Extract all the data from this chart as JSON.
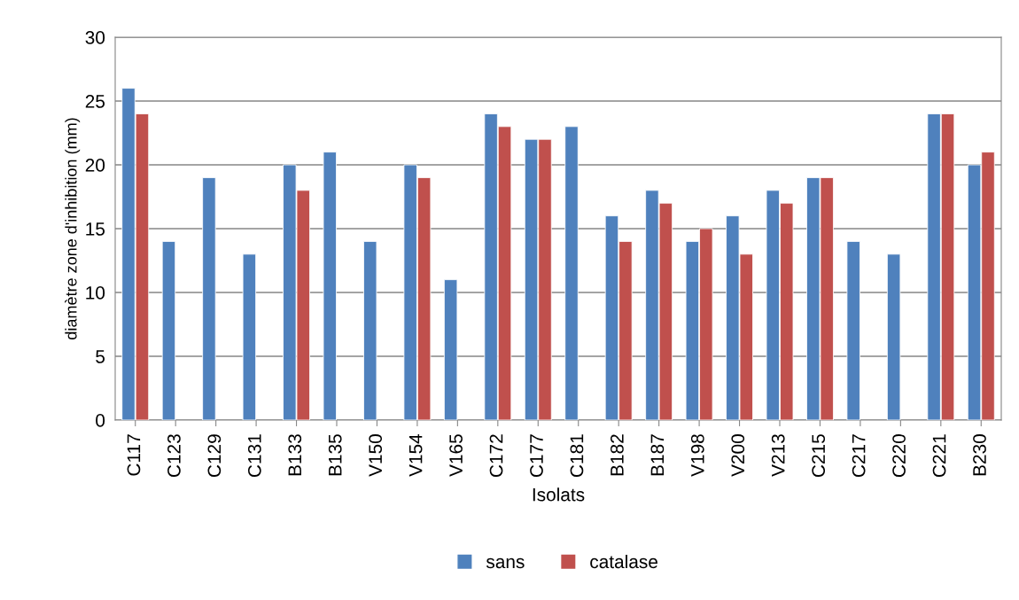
{
  "chart_data": {
    "type": "bar",
    "xlabel": "Isolats",
    "ylabel": "diamètre zone d'inhibition (mm)",
    "categories": [
      "C117",
      "C123",
      "C129",
      "C131",
      "B133",
      "B135",
      "V150",
      "V154",
      "V165",
      "C172",
      "C177",
      "C181",
      "B182",
      "B187",
      "V198",
      "V200",
      "V213",
      "C215",
      "C217",
      "C220",
      "C221",
      "B230"
    ],
    "series": [
      {
        "name": "sans",
        "color": "#4f81bd",
        "values": [
          26,
          14,
          19,
          13,
          20,
          21,
          14,
          20,
          11,
          24,
          22,
          23,
          16,
          18,
          14,
          16,
          18,
          19,
          14,
          13,
          24,
          20
        ]
      },
      {
        "name": "catalase",
        "color": "#c0504d",
        "values": [
          24,
          null,
          null,
          null,
          18,
          null,
          null,
          19,
          null,
          23,
          22,
          null,
          14,
          17,
          15,
          13,
          17,
          19,
          null,
          null,
          24,
          21
        ]
      }
    ],
    "ylim": [
      0,
      30
    ],
    "yticks": [
      0,
      5,
      10,
      15,
      20,
      25,
      30
    ],
    "grid": "y",
    "legend": "bottom"
  }
}
